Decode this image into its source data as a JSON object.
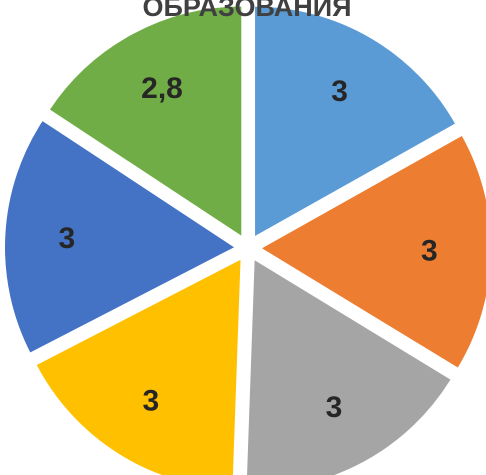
{
  "chart_data": {
    "type": "pie",
    "exploded": true,
    "title": "ОБРАЗОВАНИЯ",
    "categories": [
      "",
      "",
      "",
      "",
      "",
      ""
    ],
    "values": [
      3,
      3,
      3,
      3,
      3,
      2.8
    ],
    "data_labels": [
      "3",
      "3",
      "3",
      "3",
      "3",
      "2,8"
    ],
    "colors": [
      "#5b9bd5",
      "#ed7d31",
      "#a5a5a5",
      "#ffc000",
      "#4472c4",
      "#70ad47"
    ],
    "legend": "none"
  }
}
